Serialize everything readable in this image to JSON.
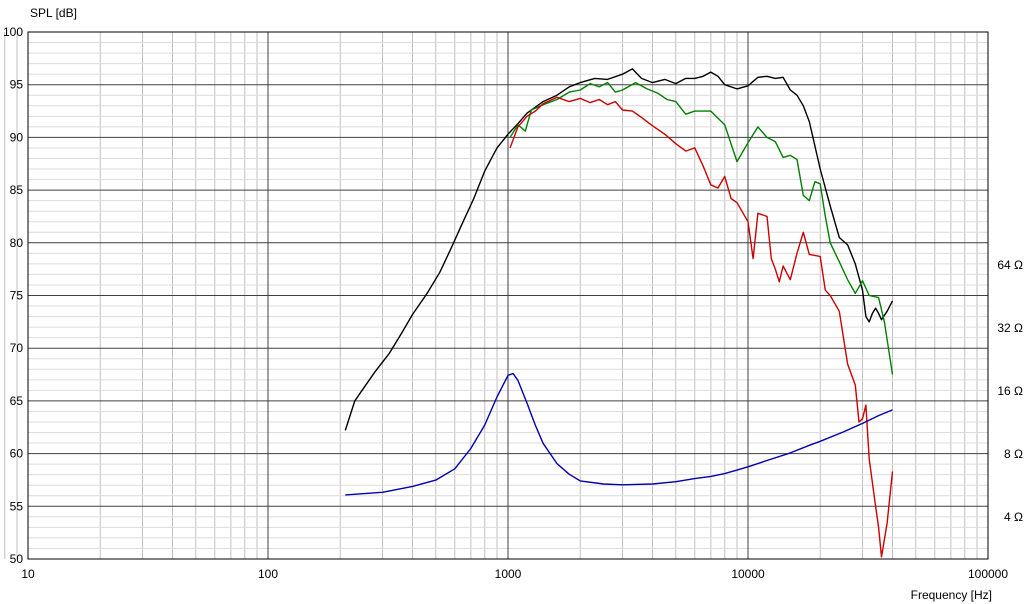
{
  "chart_data": {
    "type": "line",
    "xscale": "log",
    "xlim": [
      10,
      100000
    ],
    "ylim": [
      50,
      100
    ],
    "xlabel": "Frequency [Hz]",
    "ylabel": "SPL [dB]",
    "grid": true,
    "x_ticks": [
      "10",
      "100",
      "1000",
      "10000",
      "100000"
    ],
    "y_ticks": [
      "50",
      "55",
      "60",
      "65",
      "70",
      "75",
      "80",
      "85",
      "90",
      "95",
      "100"
    ],
    "right_axis": {
      "scale": "log",
      "ticks": [
        {
          "label": "4 Ω",
          "value": 4
        },
        {
          "label": "8 Ω",
          "value": 8
        },
        {
          "label": "16 Ω",
          "value": 16
        },
        {
          "label": "32 Ω",
          "value": 32
        },
        {
          "label": "64 Ω",
          "value": 64
        }
      ]
    },
    "series": [
      {
        "color": "#000000",
        "axis": "left",
        "points": [
          [
            210,
            62.2
          ],
          [
            230,
            65
          ],
          [
            250,
            66.2
          ],
          [
            280,
            67.8
          ],
          [
            320,
            69.5
          ],
          [
            360,
            71.4
          ],
          [
            400,
            73.2
          ],
          [
            460,
            75.2
          ],
          [
            520,
            77.2
          ],
          [
            580,
            79.5
          ],
          [
            650,
            82
          ],
          [
            720,
            84.2
          ],
          [
            800,
            86.8
          ],
          [
            900,
            89
          ],
          [
            1000,
            90.3
          ],
          [
            1100,
            91.3
          ],
          [
            1200,
            92.3
          ],
          [
            1400,
            93.4
          ],
          [
            1600,
            94
          ],
          [
            1800,
            94.8
          ],
          [
            2000,
            95.2
          ],
          [
            2300,
            95.6
          ],
          [
            2600,
            95.5
          ],
          [
            3000,
            96
          ],
          [
            3300,
            96.5
          ],
          [
            3600,
            95.6
          ],
          [
            4000,
            95.2
          ],
          [
            4500,
            95.5
          ],
          [
            5000,
            95.1
          ],
          [
            5500,
            95.6
          ],
          [
            6000,
            95.6
          ],
          [
            6500,
            95.8
          ],
          [
            7000,
            96.2
          ],
          [
            7500,
            95.8
          ],
          [
            8000,
            95
          ],
          [
            9000,
            94.6
          ],
          [
            10000,
            94.9
          ],
          [
            11000,
            95.7
          ],
          [
            12000,
            95.8
          ],
          [
            13000,
            95.6
          ],
          [
            14000,
            95.7
          ],
          [
            15000,
            94.5
          ],
          [
            16000,
            94
          ],
          [
            17000,
            93
          ],
          [
            18000,
            91.5
          ],
          [
            20000,
            87
          ],
          [
            22000,
            83.5
          ],
          [
            24000,
            80.5
          ],
          [
            26000,
            79.8
          ],
          [
            28000,
            78
          ],
          [
            30000,
            75.5
          ],
          [
            31000,
            73
          ],
          [
            32000,
            72.5
          ],
          [
            33000,
            73.3
          ],
          [
            34000,
            73.8
          ],
          [
            35000,
            73.3
          ],
          [
            36000,
            72.7
          ],
          [
            38000,
            73.5
          ],
          [
            40000,
            74.5
          ]
        ]
      },
      {
        "color": "#008000",
        "axis": "left",
        "points": [
          [
            1020,
            90
          ],
          [
            1100,
            91.2
          ],
          [
            1180,
            90.6
          ],
          [
            1250,
            92.6
          ],
          [
            1400,
            93.1
          ],
          [
            1600,
            93.6
          ],
          [
            1800,
            94.3
          ],
          [
            2000,
            94.5
          ],
          [
            2200,
            95.1
          ],
          [
            2400,
            94.8
          ],
          [
            2600,
            95.2
          ],
          [
            2800,
            94.3
          ],
          [
            3000,
            94.5
          ],
          [
            3400,
            95.2
          ],
          [
            3800,
            94.6
          ],
          [
            4200,
            94.2
          ],
          [
            4600,
            93.6
          ],
          [
            5000,
            93.4
          ],
          [
            5500,
            92.2
          ],
          [
            6000,
            92.5
          ],
          [
            7000,
            92.5
          ],
          [
            8000,
            91.2
          ],
          [
            9000,
            87.7
          ],
          [
            10000,
            89.5
          ],
          [
            11000,
            91
          ],
          [
            12000,
            90
          ],
          [
            13000,
            89.6
          ],
          [
            14000,
            88.1
          ],
          [
            15000,
            88.3
          ],
          [
            16000,
            87.9
          ],
          [
            17000,
            84.5
          ],
          [
            18000,
            84
          ],
          [
            19000,
            85.8
          ],
          [
            20000,
            85.6
          ],
          [
            21000,
            82.5
          ],
          [
            22000,
            80
          ],
          [
            24000,
            78.2
          ],
          [
            26000,
            76.5
          ],
          [
            28000,
            75.2
          ],
          [
            30000,
            76.4
          ],
          [
            32000,
            75
          ],
          [
            35000,
            74.8
          ],
          [
            37000,
            72.5
          ],
          [
            40000,
            67.5
          ]
        ]
      },
      {
        "color": "#cc0000",
        "axis": "left",
        "points": [
          [
            1020,
            89
          ],
          [
            1100,
            91
          ],
          [
            1200,
            92
          ],
          [
            1300,
            92.5
          ],
          [
            1400,
            93.2
          ],
          [
            1600,
            93.8
          ],
          [
            1800,
            93.4
          ],
          [
            2000,
            93.7
          ],
          [
            2200,
            93.3
          ],
          [
            2400,
            93.6
          ],
          [
            2600,
            93.1
          ],
          [
            2800,
            93.4
          ],
          [
            3000,
            92.6
          ],
          [
            3300,
            92.5
          ],
          [
            3600,
            91.9
          ],
          [
            4000,
            91.1
          ],
          [
            4500,
            90.3
          ],
          [
            5000,
            89.4
          ],
          [
            5500,
            88.7
          ],
          [
            6000,
            89
          ],
          [
            6500,
            87.3
          ],
          [
            7000,
            85.5
          ],
          [
            7500,
            85.2
          ],
          [
            8000,
            86.3
          ],
          [
            8500,
            84.2
          ],
          [
            9000,
            83.8
          ],
          [
            10000,
            82
          ],
          [
            10500,
            78.5
          ],
          [
            11000,
            82.8
          ],
          [
            12000,
            82.5
          ],
          [
            12500,
            78.5
          ],
          [
            13000,
            77.5
          ],
          [
            13500,
            76.3
          ],
          [
            14000,
            77.8
          ],
          [
            15000,
            76.5
          ],
          [
            16000,
            79
          ],
          [
            17000,
            81
          ],
          [
            18000,
            78.9
          ],
          [
            19000,
            78.8
          ],
          [
            20000,
            78.7
          ],
          [
            21000,
            75.5
          ],
          [
            22000,
            75
          ],
          [
            24000,
            73.5
          ],
          [
            26000,
            68.5
          ],
          [
            28000,
            66.5
          ],
          [
            29000,
            63
          ],
          [
            30000,
            63.3
          ],
          [
            31000,
            64.6
          ],
          [
            32000,
            59.5
          ],
          [
            34000,
            55
          ],
          [
            35000,
            53
          ],
          [
            36000,
            50.2
          ],
          [
            38000,
            53.4
          ],
          [
            40000,
            58.3
          ]
        ]
      },
      {
        "color": "#0000b0",
        "axis": "right",
        "points": [
          [
            210,
            5.1
          ],
          [
            300,
            5.25
          ],
          [
            400,
            5.6
          ],
          [
            500,
            6.0
          ],
          [
            600,
            6.8
          ],
          [
            700,
            8.5
          ],
          [
            800,
            11
          ],
          [
            900,
            15
          ],
          [
            1000,
            19
          ],
          [
            1050,
            19.4
          ],
          [
            1100,
            18
          ],
          [
            1200,
            14
          ],
          [
            1300,
            11
          ],
          [
            1400,
            9
          ],
          [
            1600,
            7.2
          ],
          [
            1800,
            6.4
          ],
          [
            2000,
            5.95
          ],
          [
            2500,
            5.75
          ],
          [
            3000,
            5.7
          ],
          [
            4000,
            5.75
          ],
          [
            5000,
            5.9
          ],
          [
            6000,
            6.1
          ],
          [
            7000,
            6.25
          ],
          [
            8000,
            6.45
          ],
          [
            9000,
            6.7
          ],
          [
            10000,
            6.95
          ],
          [
            12000,
            7.45
          ],
          [
            15000,
            8.1
          ],
          [
            18000,
            8.8
          ],
          [
            20000,
            9.2
          ],
          [
            25000,
            10.2
          ],
          [
            30000,
            11.2
          ],
          [
            35000,
            12.2
          ],
          [
            40000,
            13.0
          ]
        ]
      }
    ]
  }
}
